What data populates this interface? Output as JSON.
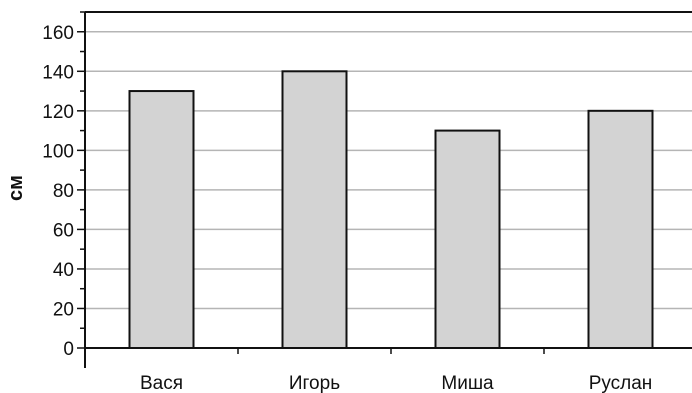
{
  "chart_data": {
    "type": "bar",
    "categories": [
      "Вася",
      "Игорь",
      "Миша",
      "Руслан"
    ],
    "values": [
      130,
      140,
      110,
      120
    ],
    "title": "",
    "xlabel": "",
    "ylabel": "см",
    "ylim": [
      0,
      170
    ],
    "yticks": [
      0,
      20,
      40,
      60,
      80,
      100,
      120,
      140,
      160
    ],
    "grid": true,
    "legend": "none",
    "colors": {
      "bar_fill": "#d3d3d3",
      "bar_stroke": "#111111",
      "grid": "#b5b5b5",
      "axis": "#111111",
      "text": "#111111"
    }
  }
}
